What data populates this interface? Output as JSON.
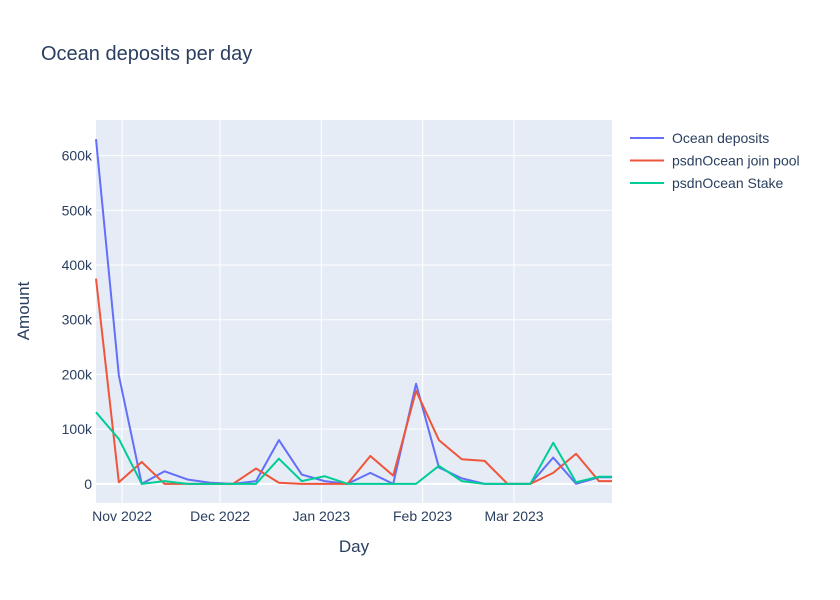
{
  "chart_data": {
    "type": "line",
    "title": "Ocean deposits per day",
    "xlabel": "Day",
    "ylabel": "Amount",
    "x_start": "2022-10-24",
    "x_range": [
      "2022-10-24",
      "2023-03-31"
    ],
    "ylim": [
      -35000,
      665000
    ],
    "y_ticks": [
      0,
      100000,
      200000,
      300000,
      400000,
      500000,
      600000
    ],
    "y_tick_labels": [
      "0",
      "100k",
      "200k",
      "300k",
      "400k",
      "500k",
      "600k"
    ],
    "x_ticks": [
      "2022-11-01",
      "2022-12-01",
      "2023-01-01",
      "2023-02-01",
      "2023-03-01"
    ],
    "x_tick_labels": [
      "Nov 2022",
      "Dec 2022",
      "Jan 2023",
      "Feb 2023",
      "Mar 2023"
    ],
    "grid": true,
    "legend_position": "top-right",
    "x": [
      "2022-10-24",
      "2022-10-31",
      "2022-11-07",
      "2022-11-14",
      "2022-11-21",
      "2022-11-28",
      "2022-12-05",
      "2022-12-12",
      "2022-12-19",
      "2022-12-26",
      "2023-01-02",
      "2023-01-09",
      "2023-01-16",
      "2023-01-23",
      "2023-01-30",
      "2023-02-06",
      "2023-02-13",
      "2023-02-20",
      "2023-02-27",
      "2023-03-06",
      "2023-03-13",
      "2023-03-20",
      "2023-03-27",
      "2023-03-31"
    ],
    "series": [
      {
        "name": "Ocean deposits",
        "color": "#636efa",
        "values": [
          630000,
          198000,
          0,
          23000,
          8000,
          2000,
          0,
          5000,
          80000,
          17000,
          5000,
          0,
          20000,
          0,
          183000,
          30000,
          10000,
          0,
          0,
          0,
          48000,
          0,
          12000,
          12000
        ]
      },
      {
        "name": "psdnOcean join pool",
        "color": "#ef553b",
        "values": [
          375000,
          3000,
          40000,
          0,
          0,
          0,
          0,
          28000,
          2000,
          0,
          0,
          0,
          51000,
          15000,
          170000,
          80000,
          45000,
          42000,
          0,
          0,
          20000,
          55000,
          5000,
          5000
        ]
      },
      {
        "name": "psdnOcean Stake",
        "color": "#00cc96",
        "values": [
          131000,
          82000,
          0,
          5000,
          0,
          0,
          0,
          0,
          46000,
          5000,
          14000,
          0,
          0,
          0,
          0,
          33000,
          5000,
          0,
          0,
          0,
          75000,
          3000,
          13000,
          13000
        ]
      }
    ]
  }
}
